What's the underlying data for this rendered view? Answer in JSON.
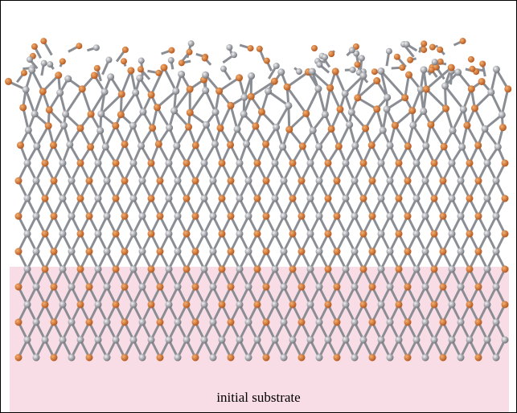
{
  "label": "initial substrate"
}
